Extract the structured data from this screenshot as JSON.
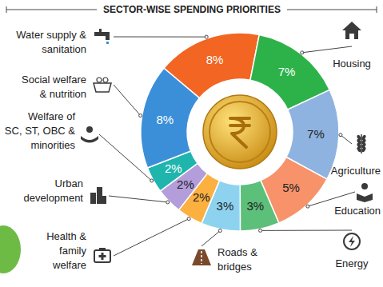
{
  "chart_data": {
    "type": "donut",
    "title": "SECTOR-WISE SPENDING PRIORITIES",
    "categories": [
      "Water supply &\nsanitation",
      "Housing",
      "Agriculture",
      "Education",
      "Energy",
      "Roads &\nbridges",
      "Health &\nfamily\nwelfare",
      "Urban\ndevelopment",
      "Welfare of\nSC, ST, OBC &\nminorities",
      "Social welfare\n& nutrition"
    ],
    "values": [
      8,
      7,
      7,
      5,
      3,
      3,
      2,
      2,
      2,
      8
    ],
    "value_labels": [
      "8%",
      "7%",
      "7%",
      "5%",
      "3%",
      "3%",
      "2%",
      "2%",
      "2%",
      "8%"
    ],
    "colors": [
      "#f26522",
      "#2db24a",
      "#8fb3e0",
      "#f7926b",
      "#5cbf7a",
      "#8dd3f0",
      "#fbb040",
      "#b39ddb",
      "#1fb5ad",
      "#3b8fd9"
    ],
    "data_labels": true
  }
}
